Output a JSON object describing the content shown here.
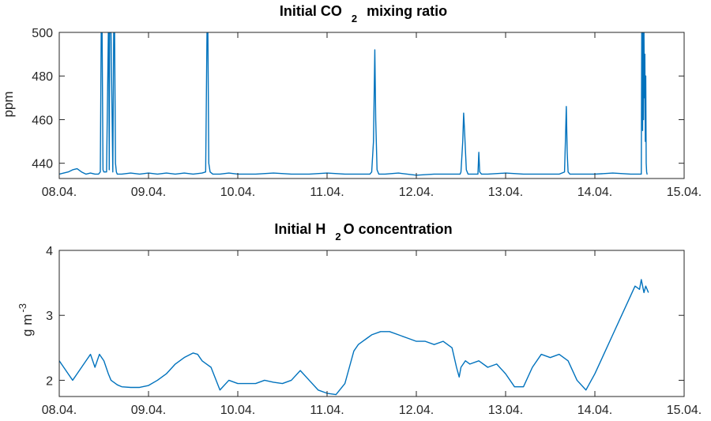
{
  "chart_data": [
    {
      "type": "line",
      "title": "Initial CO",
      "title_subscript": "2",
      "title_suffix": "mixing ratio",
      "ylabel": "ppm",
      "xlabel": "",
      "xlim": [
        0,
        7
      ],
      "ylim": [
        433,
        500
      ],
      "yticks": [
        440,
        460,
        480,
        500
      ],
      "xtick_labels": [
        "08.04.",
        "09.04.",
        "10.04.",
        "11.04.",
        "12.04.",
        "13.04.",
        "14.04.",
        "15.04."
      ],
      "series": [
        {
          "name": "CO2",
          "color": "#0072BD",
          "x": [
            0.0,
            0.05,
            0.1,
            0.15,
            0.2,
            0.25,
            0.3,
            0.35,
            0.4,
            0.44,
            0.46,
            0.47,
            0.48,
            0.49,
            0.5,
            0.53,
            0.55,
            0.555,
            0.56,
            0.565,
            0.57,
            0.575,
            0.58,
            0.6,
            0.61,
            0.62,
            0.63,
            0.64,
            0.65,
            0.7,
            0.8,
            0.9,
            1.0,
            1.1,
            1.2,
            1.3,
            1.4,
            1.5,
            1.6,
            1.64,
            1.655,
            1.665,
            1.675,
            1.69,
            1.72,
            1.8,
            1.9,
            2.0,
            2.2,
            2.4,
            2.6,
            2.8,
            3.0,
            3.2,
            3.4,
            3.48,
            3.5,
            3.52,
            3.535,
            3.545,
            3.56,
            3.58,
            3.65,
            3.8,
            4.0,
            4.2,
            4.4,
            4.49,
            4.5,
            4.52,
            4.53,
            4.54,
            4.56,
            4.58,
            4.62,
            4.69,
            4.7,
            4.71,
            4.73,
            4.8,
            5.0,
            5.2,
            5.4,
            5.6,
            5.66,
            5.67,
            5.68,
            5.69,
            5.7,
            5.72,
            5.8,
            6.0,
            6.2,
            6.4,
            6.52,
            6.525,
            6.53,
            6.535,
            6.54,
            6.545,
            6.55,
            6.555,
            6.56,
            6.565,
            6.57,
            6.575,
            6.58,
            6.585,
            6.59
          ],
          "y": [
            435,
            435.5,
            436,
            437,
            437.5,
            436,
            435,
            435.5,
            435,
            435,
            436,
            500,
            500,
            437,
            436,
            436,
            500,
            500,
            437,
            500,
            500,
            500,
            500,
            436,
            500,
            500,
            440,
            436,
            435,
            435,
            435.5,
            435,
            435.5,
            435,
            435.5,
            435,
            435.5,
            435,
            435.5,
            436,
            500,
            500,
            440,
            436,
            435,
            435,
            435.5,
            435,
            435,
            435.5,
            435,
            435,
            435.5,
            435,
            435,
            435,
            436,
            450,
            492,
            460,
            437,
            435,
            435,
            435.5,
            434.5,
            435,
            435,
            435,
            436,
            450,
            463,
            455,
            437,
            435,
            435,
            435,
            445,
            436,
            435,
            435,
            435.5,
            435,
            435,
            435,
            436,
            450,
            466,
            445,
            436,
            435,
            435,
            435,
            435.5,
            435,
            435,
            500,
            500,
            455,
            500,
            460,
            500,
            470,
            490,
            450,
            480,
            440,
            436,
            435,
            435
          ]
        }
      ]
    },
    {
      "type": "line",
      "title": "Initial H",
      "title_subscript": "2",
      "title_suffix": "O concentration",
      "ylabel": "g m",
      "ylabel_superscript": "-3",
      "xlabel": "",
      "xlim": [
        0,
        7
      ],
      "ylim": [
        1.75,
        4
      ],
      "yticks": [
        2,
        3,
        4
      ],
      "xtick_labels": [
        "08.04.",
        "09.04.",
        "10.04.",
        "11.04.",
        "12.04.",
        "13.04.",
        "14.04.",
        "15.04."
      ],
      "series": [
        {
          "name": "H2O",
          "color": "#0072BD",
          "x": [
            0.0,
            0.05,
            0.1,
            0.15,
            0.2,
            0.25,
            0.3,
            0.35,
            0.4,
            0.45,
            0.5,
            0.55,
            0.58,
            0.6,
            0.65,
            0.7,
            0.8,
            0.9,
            1.0,
            1.1,
            1.2,
            1.3,
            1.4,
            1.5,
            1.55,
            1.6,
            1.65,
            1.7,
            1.8,
            1.9,
            2.0,
            2.05,
            2.1,
            2.2,
            2.3,
            2.4,
            2.5,
            2.6,
            2.7,
            2.8,
            2.9,
            3.0,
            3.1,
            3.2,
            3.25,
            3.3,
            3.35,
            3.4,
            3.45,
            3.5,
            3.6,
            3.7,
            3.8,
            3.9,
            4.0,
            4.1,
            4.2,
            4.3,
            4.4,
            4.45,
            4.48,
            4.5,
            4.55,
            4.6,
            4.7,
            4.8,
            4.9,
            5.0,
            5.1,
            5.2,
            5.3,
            5.4,
            5.5,
            5.6,
            5.7,
            5.8,
            5.9,
            6.0,
            6.1,
            6.2,
            6.3,
            6.4,
            6.45,
            6.5,
            6.52,
            6.55,
            6.57,
            6.6
          ],
          "y": [
            2.3,
            2.2,
            2.1,
            2.0,
            2.1,
            2.2,
            2.3,
            2.4,
            2.2,
            2.4,
            2.3,
            2.1,
            2.0,
            1.98,
            1.93,
            1.9,
            1.89,
            1.89,
            1.92,
            2.0,
            2.1,
            2.25,
            2.35,
            2.42,
            2.4,
            2.3,
            2.25,
            2.2,
            1.85,
            2.0,
            1.95,
            1.95,
            1.95,
            1.95,
            2.0,
            1.97,
            1.95,
            2.0,
            2.15,
            2.0,
            1.85,
            1.8,
            1.78,
            1.95,
            2.2,
            2.45,
            2.55,
            2.6,
            2.65,
            2.7,
            2.75,
            2.75,
            2.7,
            2.65,
            2.6,
            2.6,
            2.55,
            2.6,
            2.5,
            2.2,
            2.05,
            2.2,
            2.3,
            2.25,
            2.3,
            2.2,
            2.25,
            2.1,
            1.9,
            1.9,
            2.2,
            2.4,
            2.35,
            2.4,
            2.3,
            2.0,
            1.85,
            2.1,
            2.4,
            2.7,
            3.0,
            3.3,
            3.45,
            3.4,
            3.55,
            3.35,
            3.45,
            3.35
          ]
        }
      ]
    }
  ]
}
